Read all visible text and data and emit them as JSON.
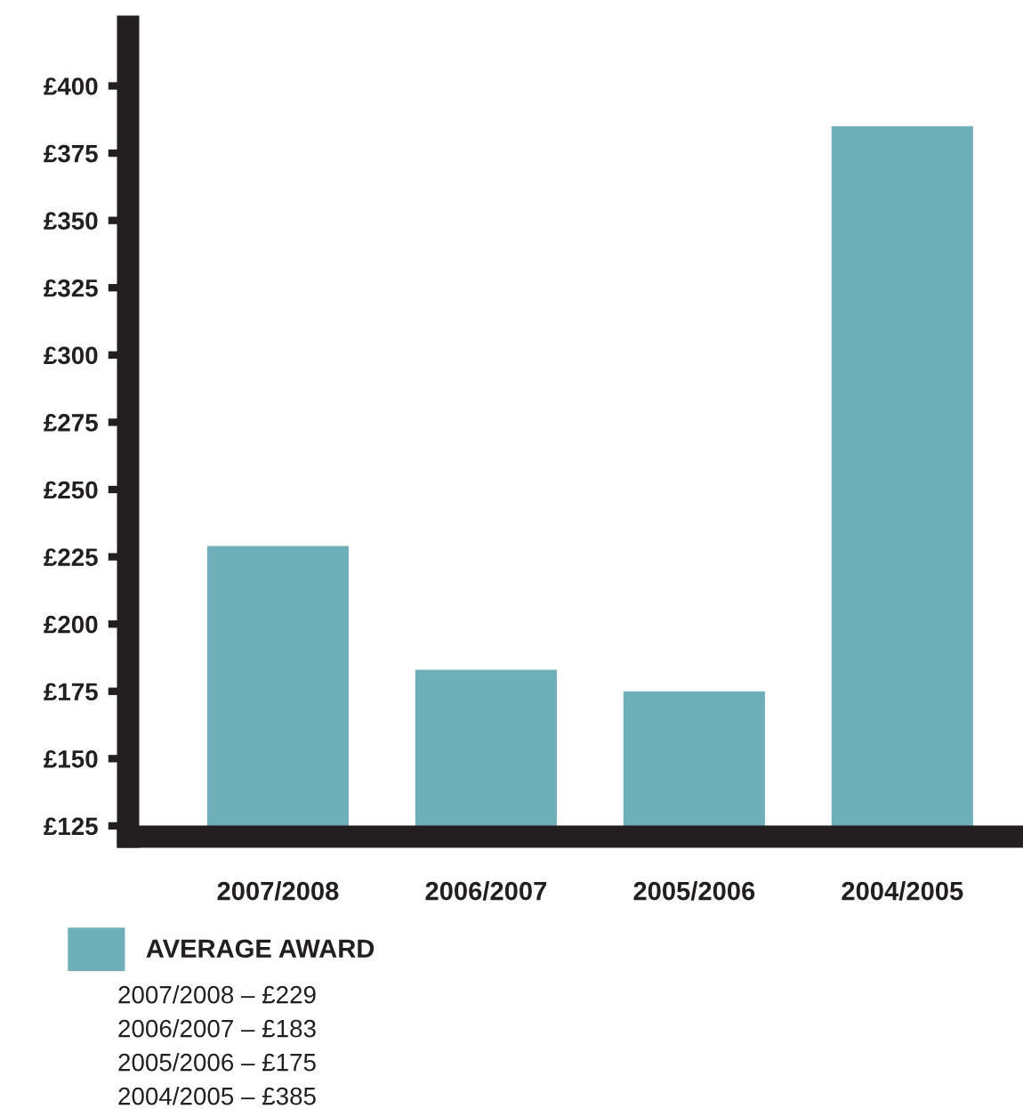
{
  "chart_data": {
    "type": "bar",
    "categories": [
      "2007/2008",
      "2006/2007",
      "2005/2006",
      "2004/2005"
    ],
    "series": [
      {
        "name": "AVERAGE AWARD",
        "color": "#6fafba",
        "values": [
          229,
          183,
          175,
          385
        ]
      }
    ],
    "value_labels": [
      "2007/2008 – £229",
      "2006/2007 – £183",
      "2005/2006 – £175",
      "2004/2005 – £385"
    ],
    "ylim": [
      121,
      422
    ],
    "yticks": [
      {
        "value": 125,
        "label": "£125"
      },
      {
        "value": 150,
        "label": "£150"
      },
      {
        "value": 175,
        "label": "£175"
      },
      {
        "value": 200,
        "label": "£200"
      },
      {
        "value": 225,
        "label": "£225"
      },
      {
        "value": 250,
        "label": "£250"
      },
      {
        "value": 275,
        "label": "£275"
      },
      {
        "value": 300,
        "label": "£300"
      },
      {
        "value": 325,
        "label": "£325"
      },
      {
        "value": 350,
        "label": "£350"
      },
      {
        "value": 375,
        "label": "£375"
      },
      {
        "value": 400,
        "label": "£400"
      }
    ],
    "grid": false,
    "legend": "bottom left"
  }
}
